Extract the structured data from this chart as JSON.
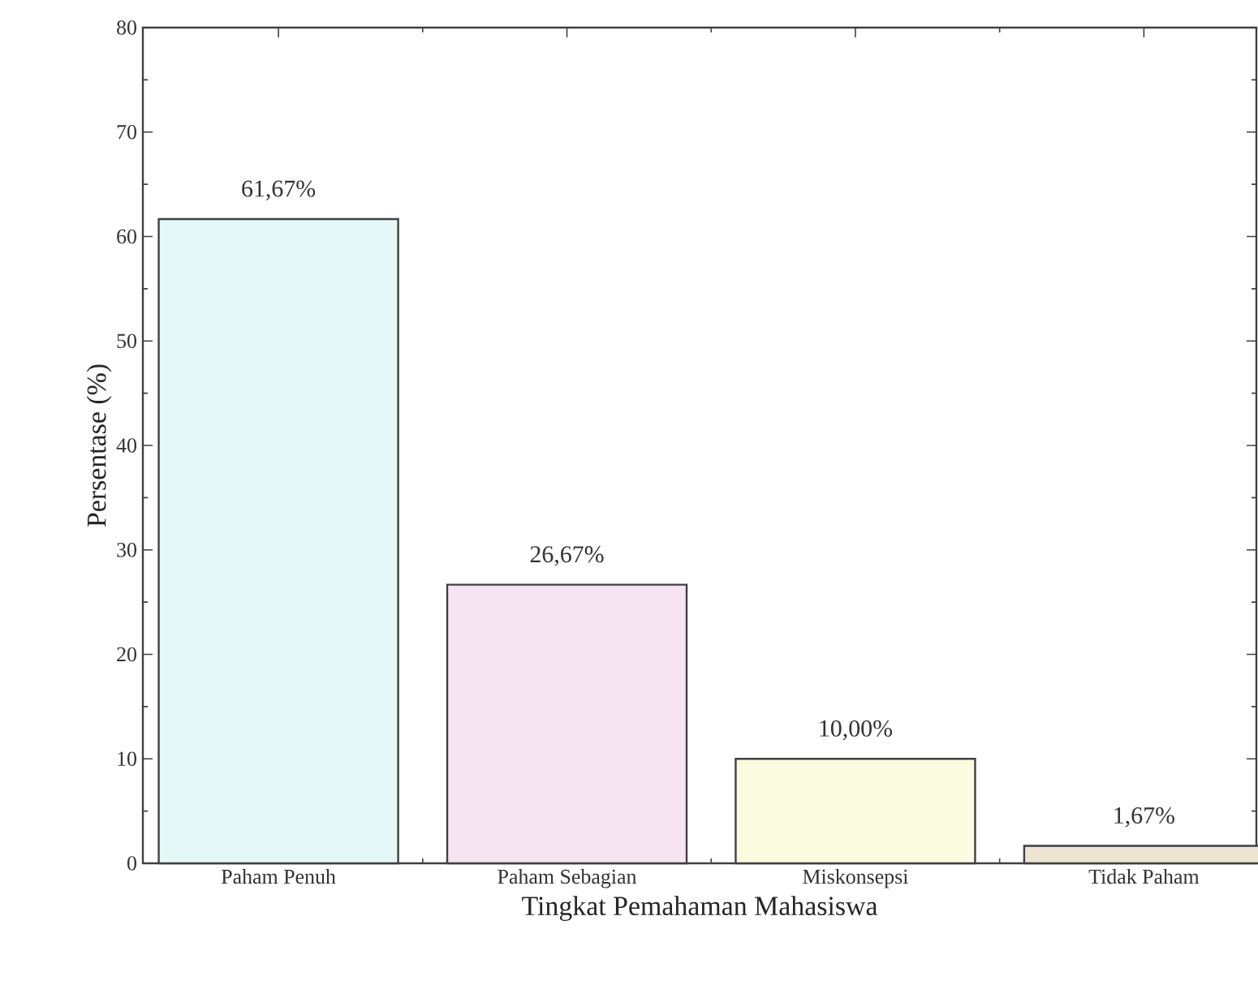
{
  "chart_data": {
    "type": "bar",
    "xlabel": "Tingkat Pemahaman Mahasiswa",
    "ylabel": "Persentase (%)",
    "categories": [
      "Paham Penuh",
      "Paham Sebagian",
      "Miskonsepsi",
      "Tidak Paham"
    ],
    "values": [
      61.67,
      26.67,
      10.0,
      1.67
    ],
    "colors": [
      "#e4f8f8",
      "#f6e4f2",
      "#fbfbe0",
      "#ece4d0"
    ],
    "value_labels": [
      "61,67%",
      "26,67%",
      "10,00%",
      "1,67%"
    ],
    "ylim": [
      0,
      80
    ],
    "yticks": [
      0,
      10,
      20,
      30,
      40,
      50,
      60,
      70,
      80
    ],
    "grid": false
  }
}
